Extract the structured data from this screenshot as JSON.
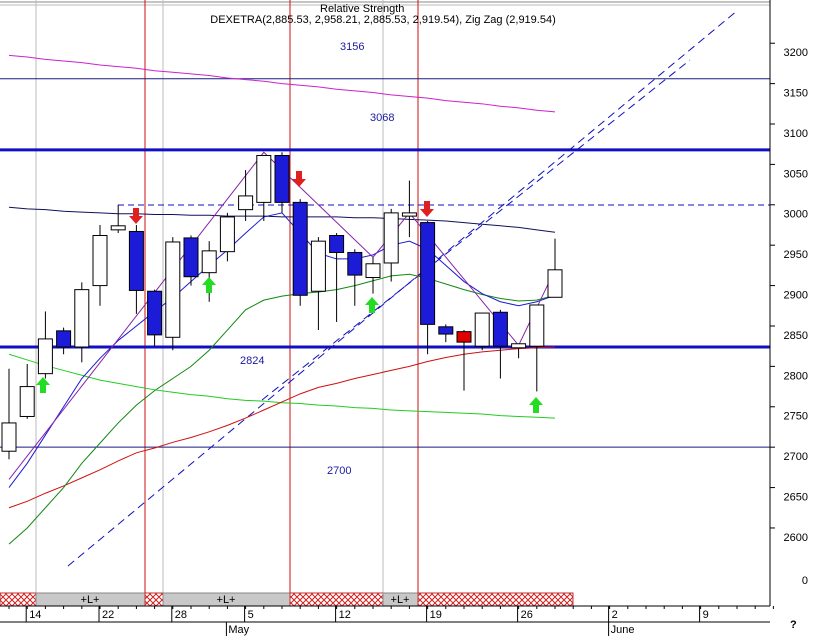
{
  "chart_data": {
    "type": "candlestick",
    "title": "Relative Strength",
    "subtitle": "DEXETRA(2,885.53, 2,958.21, 2,885.53, 2,919.54), Zig Zag (2,919.54)",
    "categories": [
      null,
      "14",
      null,
      null,
      null,
      "22",
      null,
      null,
      null,
      "28",
      null,
      null,
      null,
      "5",
      null,
      null,
      null,
      null,
      "12",
      null,
      null,
      null,
      null,
      "19",
      null,
      null,
      null,
      null,
      "26",
      null,
      null,
      null,
      null,
      "2",
      null,
      null,
      null,
      null,
      "9",
      null,
      null,
      null,
      null
    ],
    "months": [
      null,
      null,
      null,
      null,
      null,
      null,
      null,
      null,
      null,
      null,
      null,
      null,
      "May",
      null,
      null,
      null,
      null,
      null,
      null,
      null,
      null,
      null,
      null,
      null,
      null,
      null,
      null,
      null,
      null,
      null,
      null,
      null,
      null,
      "June",
      null,
      null,
      null,
      null,
      null,
      null,
      null,
      null,
      null
    ],
    "open": [
      2695,
      2738,
      2791,
      2844,
      2824,
      2900,
      2969,
      2967,
      2893,
      2836,
      2959,
      2916,
      2942,
      2994,
      3003,
      3061,
      3003,
      2893,
      2962,
      2941,
      2910,
      2928,
      2986,
      2978,
      2849,
      2843,
      2825,
      2867,
      2823,
      2825,
      2885.53,
      null,
      null,
      null,
      null,
      null,
      null,
      null,
      null,
      null,
      null,
      null,
      null
    ],
    "high": [
      2797,
      2803,
      2868,
      2848,
      2904,
      2975,
      3000,
      2975,
      2895,
      2960,
      2962,
      2955,
      2990,
      3043,
      3061,
      3065,
      3007,
      2960,
      2965,
      2945,
      2935,
      2995,
      3030,
      2980,
      2852,
      2845,
      2866,
      2870,
      2828,
      2876,
      2958.21,
      null,
      null,
      null,
      null,
      null,
      null,
      null,
      null,
      null,
      null,
      null,
      null
    ],
    "low": [
      2685,
      2735,
      2785,
      2815,
      2805,
      2875,
      2965,
      2865,
      2825,
      2820,
      2900,
      2880,
      2930,
      2980,
      2980,
      2990,
      2875,
      2845,
      2855,
      2875,
      2890,
      2905,
      2960,
      2815,
      2830,
      2770,
      2820,
      2785,
      2810,
      2769,
      2885.53,
      null,
      null,
      null,
      null,
      null,
      null,
      null,
      null,
      null,
      null,
      null,
      null
    ],
    "close": [
      2730,
      2775,
      2834,
      2824,
      2895,
      2962,
      2974,
      2894,
      2839,
      2954,
      2911,
      2943,
      2985,
      3011,
      3061,
      3003,
      2888,
      2955,
      2941,
      2913,
      2927,
      2990,
      2990,
      2852,
      2840,
      2830,
      2866,
      2825,
      2828,
      2876,
      2919.54,
      null,
      null,
      null,
      null,
      null,
      null,
      null,
      null,
      null,
      null,
      null,
      null
    ],
    "up_color": "#ffffff",
    "down_color": "#1c1cd8",
    "marked_color": "#e00000",
    "marked": [
      25
    ],
    "series": [
      {
        "color": "#10105a",
        "values": [
          2997,
          2995,
          2994,
          2992,
          2991,
          2990,
          2989,
          2989,
          2988,
          2988,
          2987,
          2987,
          2986,
          2986,
          2986,
          2985,
          2985,
          2985,
          2985,
          2984,
          2984,
          2983,
          2982,
          2981,
          2980,
          2978,
          2976,
          2974,
          2972,
          2969,
          2966,
          null,
          null,
          null,
          null,
          null,
          null,
          null,
          null,
          null,
          null,
          null,
          null
        ]
      },
      {
        "color": "#cc22cc",
        "values": [
          3185,
          3183,
          3180,
          3178,
          3176,
          3173,
          3171,
          3169,
          3166,
          3164,
          3162,
          3160,
          3157,
          3155,
          3153,
          3150,
          3148,
          3146,
          3143,
          3141,
          3139,
          3136,
          3134,
          3132,
          3129,
          3127,
          3125,
          3122,
          3120,
          3117,
          3115,
          null,
          null,
          null,
          null,
          null,
          null,
          null,
          null,
          null,
          null,
          null,
          null
        ]
      },
      {
        "color": "#22cc22",
        "values": [
          2815,
          2808,
          2801,
          2795,
          2789,
          2783,
          2779,
          2775,
          2771,
          2768,
          2765,
          2763,
          2760,
          2758,
          2757,
          2755,
          2754,
          2752,
          2751,
          2749,
          2748,
          2746,
          2745,
          2744,
          2743,
          2742,
          2741,
          2739,
          2738,
          2737,
          2736,
          null,
          null,
          null,
          null,
          null,
          null,
          null,
          null,
          null,
          null,
          null,
          null
        ]
      },
      {
        "color": "#cc1111",
        "values": [
          2625,
          2633,
          2643,
          2652,
          2662,
          2672,
          2683,
          2693,
          2699,
          2706,
          2712,
          2719,
          2727,
          2736,
          2746,
          2756,
          2766,
          2774,
          2779,
          2785,
          2790,
          2795,
          2800,
          2806,
          2811,
          2815,
          2818,
          2820,
          2822,
          2823,
          2824,
          null,
          null,
          null,
          null,
          null,
          null,
          null,
          null,
          null,
          null,
          null,
          null
        ]
      },
      {
        "color": "#118811",
        "values": [
          2580,
          2600,
          2625,
          2650,
          2680,
          2705,
          2730,
          2752,
          2770,
          2785,
          2800,
          2820,
          2845,
          2870,
          2882,
          2887,
          2890,
          2892,
          2895,
          2900,
          2906,
          2912,
          2914,
          2909,
          2902,
          2895,
          2889,
          2884,
          2881,
          2882,
          2888,
          null,
          null,
          null,
          null,
          null,
          null,
          null,
          null,
          null,
          null,
          null,
          null
        ]
      },
      {
        "color": "#1a1ad8",
        "values": [
          2650,
          2680,
          2715,
          2750,
          2785,
          2810,
          2832,
          2850,
          2868,
          2885,
          2905,
          2925,
          2944,
          2965,
          2985,
          2990,
          2965,
          2940,
          2933,
          2933,
          2938,
          2950,
          2955,
          2945,
          2925,
          2905,
          2890,
          2880,
          2875,
          2880,
          2888,
          null,
          null,
          null,
          null,
          null,
          null,
          null,
          null,
          null,
          null,
          null,
          null
        ]
      }
    ],
    "zigzag": {
      "color": "#8822aa",
      "x": [
        0,
        14,
        20,
        22,
        28,
        30
      ],
      "values": [
        2660,
        3065,
        2935,
        2990,
        2826,
        2919.54
      ]
    },
    "levels": [
      {
        "value": 3156,
        "thick": false
      },
      {
        "value": 3068,
        "thick": true
      },
      {
        "value": 2824,
        "thick": true
      },
      {
        "value": 2700,
        "thick": false
      }
    ],
    "ylim": [
      2519.5,
      3253.5
    ],
    "yticks": [
      3200,
      3150,
      3100,
      3050,
      3000,
      2950,
      2900,
      2850,
      2800,
      2750,
      2700,
      2650,
      2600
    ],
    "axis_end_label": "0",
    "band_labels": [
      "+L+",
      "+L+",
      "+L+"
    ],
    "help_label": "?"
  }
}
